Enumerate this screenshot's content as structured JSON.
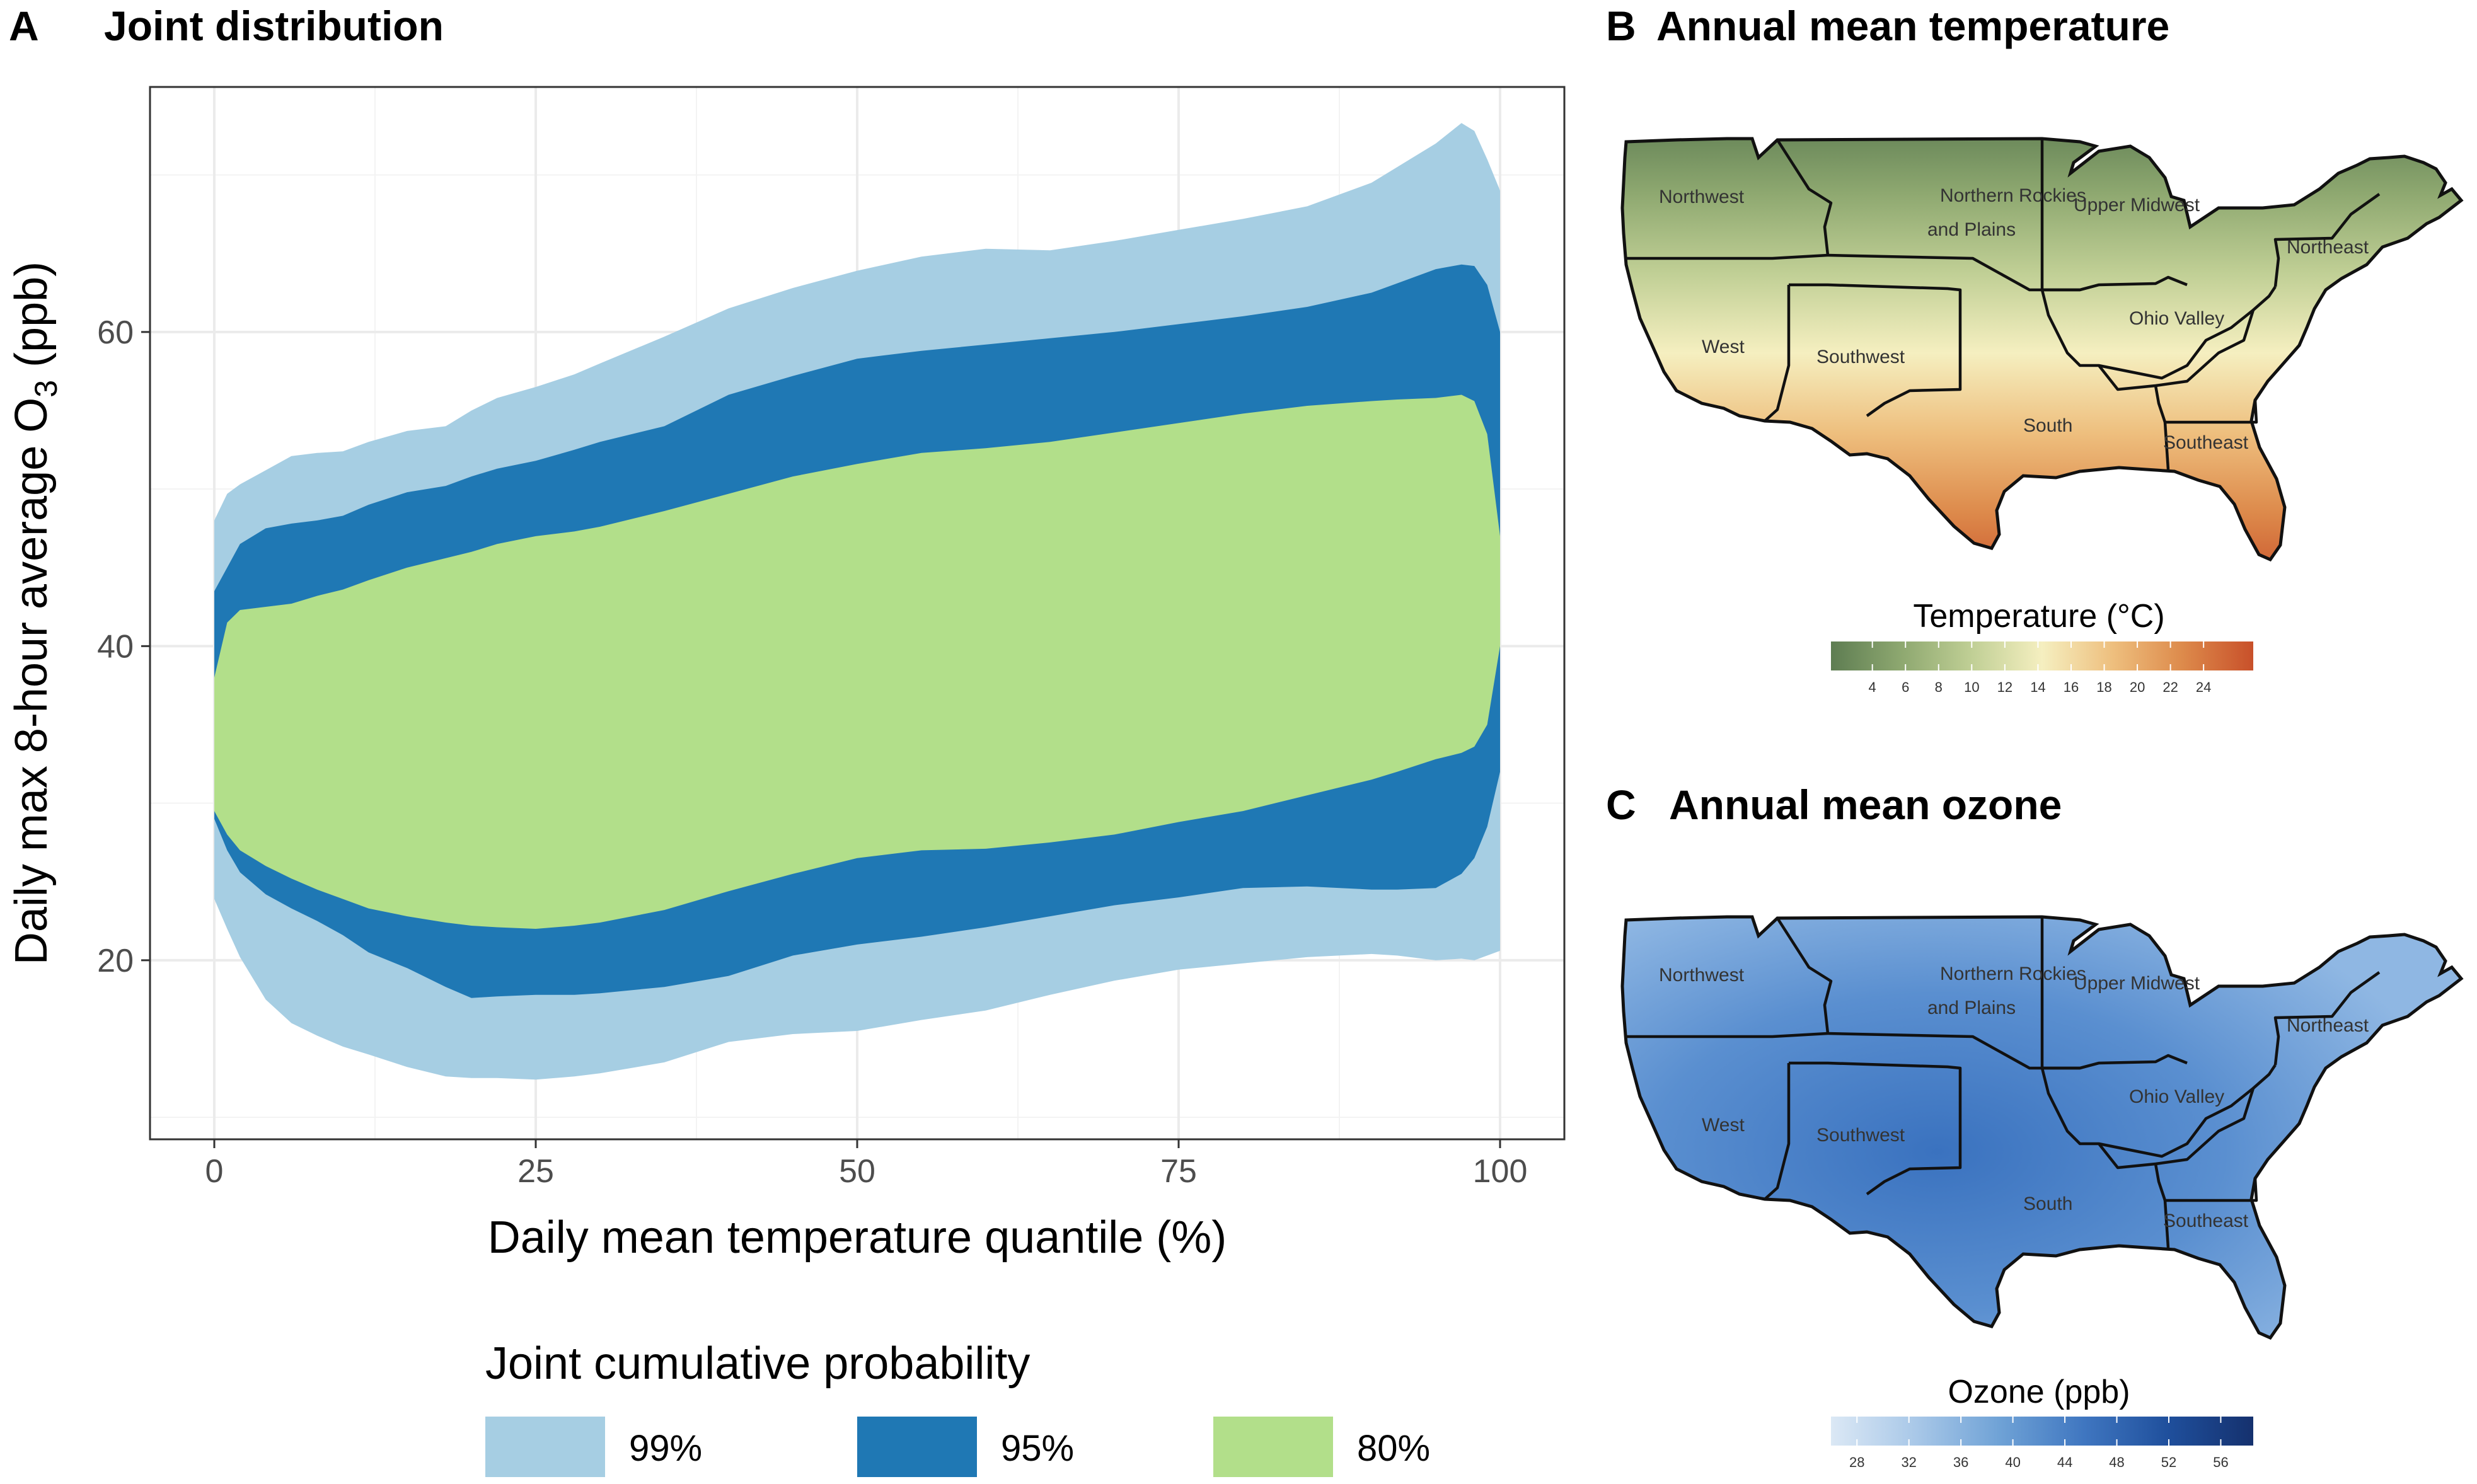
{
  "panels": {
    "a": {
      "letter": "A",
      "title": "Joint distribution"
    },
    "b": {
      "letter": "B",
      "title": "Annual mean temperature"
    },
    "c": {
      "letter": "C",
      "title": "Annual mean ozone"
    }
  },
  "colors": {
    "band_99": "#a6cee3",
    "band_95": "#1f78b4",
    "band_80": "#b2df8a",
    "grid": "#ebebeb",
    "panel_border": "#333333"
  },
  "chart_data": [
    {
      "type": "area",
      "xlabel": "Daily mean temperature quantile (%)",
      "ylabel": "Daily max 8-hour average O",
      "ylabel_sub": "3",
      "ylabel_unit": " (ppb)",
      "xlim": [
        -5,
        105
      ],
      "ylim": [
        8.6,
        75.6
      ],
      "x_ticks": [
        0,
        25,
        50,
        75,
        100
      ],
      "y_ticks": [
        20,
        40,
        60
      ],
      "grid": true,
      "legend": {
        "title": "Joint cumulative probability",
        "position": "bottom",
        "entries": [
          "99%",
          "95%",
          "80%"
        ]
      },
      "x": [
        0,
        1,
        2,
        4,
        6,
        8,
        10,
        12,
        15,
        18,
        20,
        22,
        25,
        28,
        30,
        35,
        40,
        45,
        50,
        55,
        60,
        65,
        70,
        75,
        80,
        85,
        90,
        92,
        95,
        97,
        98,
        99,
        100
      ],
      "series": [
        {
          "name": "99%",
          "upper": [
            48.0,
            49.7,
            50.3,
            51.2,
            52.1,
            52.3,
            52.4,
            53.0,
            53.7,
            54.0,
            55.0,
            55.8,
            56.5,
            57.3,
            58.0,
            59.7,
            61.5,
            62.8,
            63.9,
            64.8,
            65.3,
            65.2,
            65.8,
            66.5,
            67.2,
            68.0,
            69.5,
            70.5,
            72.0,
            73.3,
            72.8,
            71.0,
            69.0
          ],
          "lower": [
            23.9,
            22.0,
            20.2,
            17.5,
            16.0,
            15.2,
            14.5,
            14.0,
            13.2,
            12.6,
            12.5,
            12.5,
            12.4,
            12.6,
            12.8,
            13.5,
            14.8,
            15.3,
            15.5,
            16.2,
            16.8,
            17.8,
            18.7,
            19.4,
            19.8,
            20.2,
            20.4,
            20.3,
            20.0,
            20.1,
            20.0,
            20.3,
            20.6
          ]
        },
        {
          "name": "95%",
          "upper": [
            43.5,
            45.0,
            46.5,
            47.5,
            47.8,
            48.0,
            48.3,
            49.0,
            49.8,
            50.2,
            50.8,
            51.3,
            51.8,
            52.5,
            53.0,
            54.0,
            56.0,
            57.2,
            58.3,
            58.8,
            59.2,
            59.6,
            60.0,
            60.5,
            61.0,
            61.6,
            62.5,
            63.1,
            64.0,
            64.3,
            64.2,
            63.0,
            60.0
          ],
          "lower": [
            29.0,
            27.0,
            25.6,
            24.2,
            23.3,
            22.5,
            21.6,
            20.5,
            19.5,
            18.3,
            17.6,
            17.7,
            17.8,
            17.8,
            17.9,
            18.3,
            19.0,
            20.3,
            21.0,
            21.5,
            22.1,
            22.8,
            23.5,
            24.0,
            24.6,
            24.7,
            24.5,
            24.5,
            24.6,
            25.5,
            26.5,
            28.5,
            32.0
          ]
        },
        {
          "name": "80%",
          "upper": [
            38.0,
            41.5,
            42.3,
            42.5,
            42.7,
            43.2,
            43.6,
            44.2,
            45.0,
            45.6,
            46.0,
            46.5,
            47.0,
            47.3,
            47.6,
            48.6,
            49.7,
            50.8,
            51.6,
            52.3,
            52.6,
            53.0,
            53.6,
            54.2,
            54.8,
            55.3,
            55.6,
            55.7,
            55.8,
            56.0,
            55.6,
            53.5,
            47.0
          ],
          "lower": [
            29.5,
            28.0,
            27.0,
            26.0,
            25.2,
            24.5,
            23.9,
            23.3,
            22.8,
            22.4,
            22.2,
            22.1,
            22.0,
            22.2,
            22.4,
            23.2,
            24.4,
            25.5,
            26.5,
            27.0,
            27.1,
            27.5,
            28.0,
            28.8,
            29.5,
            30.5,
            31.5,
            32.0,
            32.8,
            33.2,
            33.6,
            35.0,
            40.0
          ]
        }
      ]
    },
    {
      "type": "heatmap",
      "title": "Annual mean temperature",
      "colorbar": {
        "title": "Temperature (°C)",
        "ticks": [
          4,
          6,
          8,
          10,
          12,
          14,
          16,
          18,
          20,
          22,
          24
        ],
        "range": [
          1.5,
          27
        ],
        "colors": [
          "#5e7d52",
          "#8ea870",
          "#c0cf95",
          "#f5efc0",
          "#eebf7e",
          "#dd8a4b",
          "#c8502a"
        ]
      },
      "regions": [
        "Northwest",
        "Northern Rockies",
        "and Plains",
        "Upper Midwest",
        "Northeast",
        "Ohio Valley",
        "West",
        "Southwest",
        "South",
        "Southeast"
      ]
    },
    {
      "type": "heatmap",
      "title": "Annual mean ozone",
      "colorbar": {
        "title": "Ozone (ppb)",
        "ticks": [
          28,
          32,
          36,
          40,
          44,
          48,
          52,
          56
        ],
        "range": [
          26,
          58.5
        ],
        "colors": [
          "#dbe8f5",
          "#a9c8e8",
          "#6fa2d6",
          "#3f76c0",
          "#1f4f9c",
          "#15316e"
        ]
      },
      "regions": [
        "Northwest",
        "Northern Rockies",
        "and Plains",
        "Upper Midwest",
        "Northeast",
        "Ohio Valley",
        "West",
        "Southwest",
        "South",
        "Southeast"
      ]
    }
  ]
}
